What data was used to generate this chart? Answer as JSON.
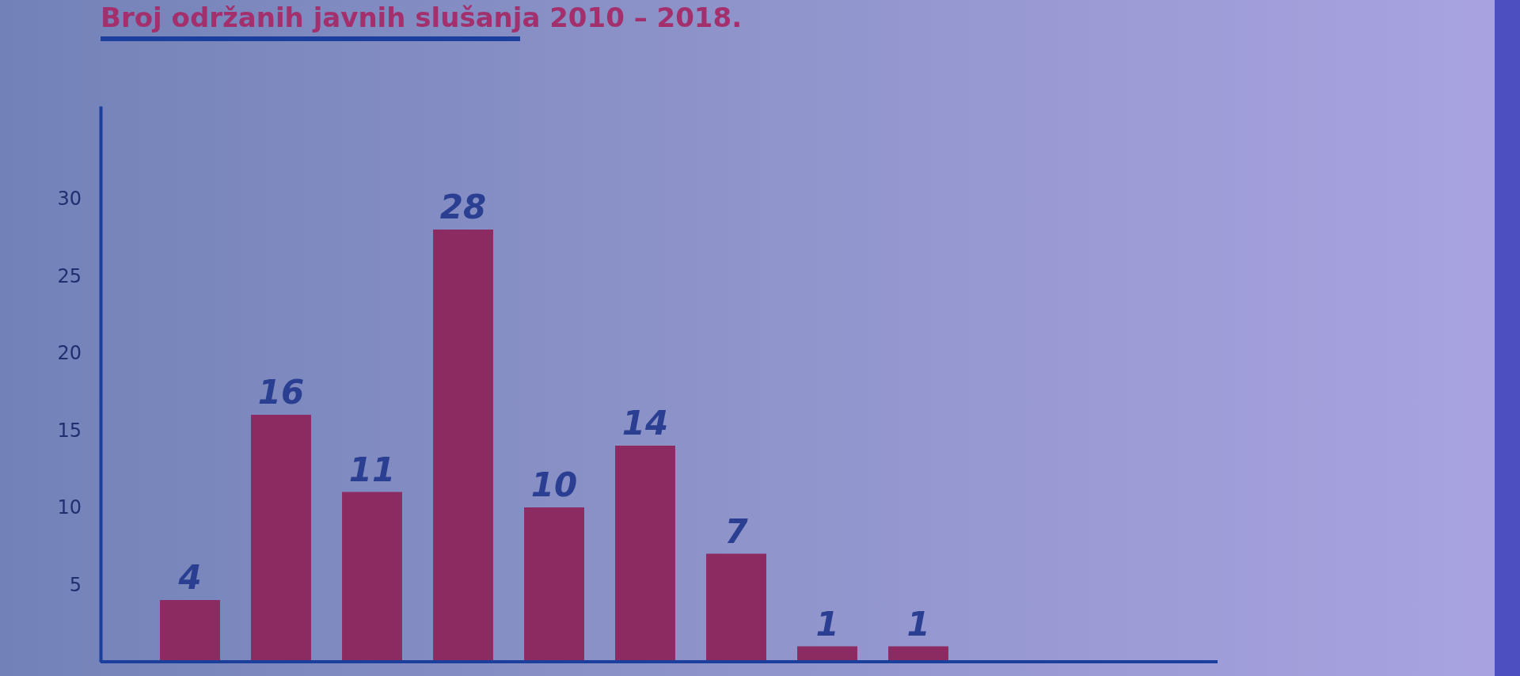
{
  "chart_data": {
    "type": "bar",
    "title": "Broj održanih javnih slušanja 2010 – 2018.",
    "categories": [
      null,
      null,
      null,
      null,
      null,
      null,
      null,
      null,
      null
    ],
    "values": [
      4,
      16,
      11,
      28,
      10,
      14,
      7,
      1,
      1
    ],
    "color": "#8c2a62",
    "ylim": [
      0,
      36
    ],
    "yticks": [
      5,
      10,
      15,
      20,
      25,
      30
    ],
    "data_labels": true
  }
}
